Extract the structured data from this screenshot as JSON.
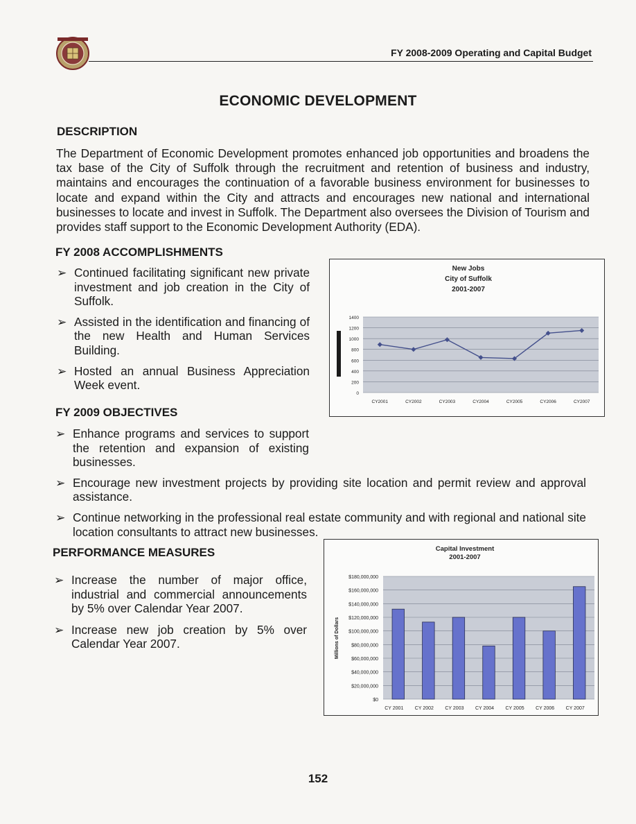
{
  "header": {
    "title": "FY 2008-2009 Operating and Capital Budget"
  },
  "page_title": "ECONOMIC DEVELOPMENT",
  "description": {
    "heading": "DESCRIPTION",
    "text": "The Department of Economic Development promotes enhanced job opportunities and broadens the tax base of the City of Suffolk through the recruitment and retention of business and industry, maintains and encourages the continuation of a favorable business environment for businesses to locate and expand within the City and attracts and encourages new national and international businesses to locate and invest in Suffolk. The Department also oversees the Division of Tourism and provides staff support to the Economic Development Authority (EDA)."
  },
  "accomplishments": {
    "heading": "FY 2008 ACCOMPLISHMENTS",
    "items": [
      "Continued facilitating significant new private investment and job creation in the City of Suffolk.",
      "Assisted in the identification and financing of the new Health and Human Services Building.",
      "Hosted an annual Business Appreciation Week event."
    ]
  },
  "objectives": {
    "heading": "FY 2009 OBJECTIVES",
    "items": [
      "Enhance programs and services to support the retention and expansion of existing businesses.",
      "Encourage new investment projects by providing site location and permit review and approval assistance.",
      "Continue networking in the professional real estate community and with regional and national site location consultants to attract new businesses."
    ]
  },
  "performance": {
    "heading": "PERFORMANCE MEASURES",
    "items": [
      "Increase the number of major office, industrial and commercial announcements by 5% over Calendar Year 2007.",
      "Increase new job creation by 5% over Calendar Year 2007."
    ]
  },
  "bullet_glyph": "➢",
  "page_number": "152",
  "colors": {
    "bar": "#6672cc",
    "line": "#44508c",
    "plot_bg": "#c9cdd6"
  },
  "chart_data": [
    {
      "type": "line",
      "title_lines": [
        "New Jobs",
        "City of Suffolk",
        "2001-2007"
      ],
      "categories": [
        "CY2001",
        "CY2002",
        "CY2003",
        "CY2004",
        "CY2005",
        "CY2006",
        "CY2007"
      ],
      "values": [
        890,
        800,
        980,
        650,
        630,
        1100,
        1150
      ],
      "yticks": [
        "1400",
        "1200",
        "1000",
        "800",
        "600",
        "400",
        "200",
        "0"
      ],
      "ylim": [
        0,
        1400
      ],
      "xlabel": "",
      "ylabel": ""
    },
    {
      "type": "bar",
      "title_lines": [
        "Capital Investment",
        "2001-2007"
      ],
      "categories": [
        "CY 2001",
        "CY 2002",
        "CY 2003",
        "CY 2004",
        "CY 2005",
        "CY 2006",
        "CY 2007"
      ],
      "values": [
        132000000,
        113000000,
        120000000,
        78000000,
        120000000,
        100000000,
        165000000
      ],
      "yticks": [
        "$180,000,000",
        "$160,000,000",
        "$140,000,000",
        "$120,000,000",
        "$100,000,000",
        "$80,000,000",
        "$60,000,000",
        "$40,000,000",
        "$20,000,000",
        "$0"
      ],
      "ylim": [
        0,
        180000000
      ],
      "ylabel": "Millions of Dollars",
      "xlabel": ""
    }
  ]
}
